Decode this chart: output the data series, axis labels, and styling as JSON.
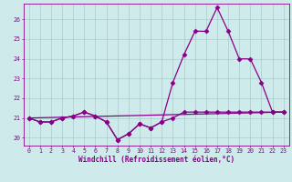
{
  "xlabel": "Windchill (Refroidissement éolien,°C)",
  "background_color": "#ceeaea",
  "line_color": "#880088",
  "grid_color": "#aacccc",
  "xlim": [
    -0.5,
    23.5
  ],
  "ylim": [
    19.6,
    26.8
  ],
  "yticks": [
    20,
    21,
    22,
    23,
    24,
    25,
    26
  ],
  "xticks": [
    0,
    1,
    2,
    3,
    4,
    5,
    6,
    7,
    8,
    9,
    10,
    11,
    12,
    13,
    14,
    15,
    16,
    17,
    18,
    19,
    20,
    21,
    22,
    23
  ],
  "series": [
    {
      "x": [
        0,
        23
      ],
      "y": [
        21.0,
        21.3
      ],
      "has_markers": false
    },
    {
      "x": [
        0,
        1,
        2,
        3,
        4,
        5,
        6,
        7,
        8,
        9,
        10,
        11,
        12,
        13,
        14,
        15,
        16,
        17,
        18,
        19,
        20,
        21,
        22,
        23
      ],
      "y": [
        21.0,
        20.8,
        20.8,
        21.0,
        21.1,
        21.3,
        21.1,
        20.8,
        19.9,
        20.2,
        20.7,
        20.5,
        20.8,
        21.0,
        21.3,
        21.3,
        21.3,
        21.3,
        21.3,
        21.3,
        21.3,
        21.3,
        21.3,
        21.3
      ],
      "has_markers": true
    },
    {
      "x": [
        0,
        1,
        2,
        3,
        4,
        5,
        6,
        7,
        8,
        9,
        10,
        11,
        12,
        13,
        14,
        15,
        16,
        17,
        18,
        19,
        20,
        21,
        22,
        23
      ],
      "y": [
        21.0,
        20.8,
        20.8,
        21.0,
        21.1,
        21.3,
        21.1,
        20.8,
        19.9,
        20.2,
        20.7,
        20.5,
        20.8,
        22.8,
        24.2,
        25.4,
        25.4,
        26.6,
        25.4,
        24.0,
        24.0,
        22.8,
        21.3,
        21.3
      ],
      "has_markers": true
    }
  ],
  "marker": "D",
  "markersize": 2.5,
  "linewidth": 0.9,
  "label_fontsize": 5.5,
  "tick_fontsize": 4.8
}
